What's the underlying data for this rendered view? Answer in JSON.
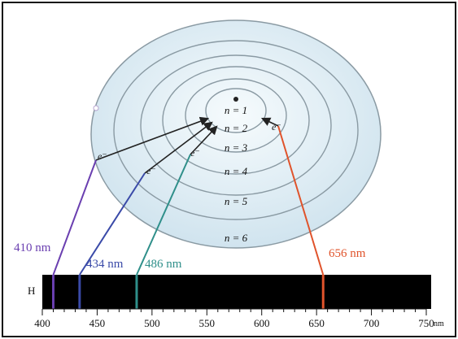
{
  "title": "",
  "colors": {
    "frame": "#111111",
    "orbit_fill_outer": "#d8e9f1",
    "orbit_fill_inner": "#f6fbfd",
    "orbit_stroke": "#8a9aa3",
    "spectrum_bg": "#000000",
    "line_410": "#6a3fb0",
    "line_434": "#3a4aa8",
    "line_486": "#2f8f8a",
    "line_656": "#e0532b",
    "arrow": "#222222"
  },
  "orbits": {
    "levels": [
      {
        "label": "n = 1"
      },
      {
        "label": "n = 2"
      },
      {
        "label": "n = 3"
      },
      {
        "label": "n = 4"
      },
      {
        "label": "n = 5"
      },
      {
        "label": "n = 6"
      }
    ],
    "electron_label": "e⁻"
  },
  "spectrum": {
    "element_label": "H",
    "axis_unit": "nm",
    "axis_ticks": [
      "400",
      "450",
      "500",
      "550",
      "600",
      "650",
      "700",
      "750"
    ],
    "lines": [
      {
        "wavelength_nm": 410,
        "label": "410 nm",
        "color": "#6a3fb0",
        "from_n": 6
      },
      {
        "wavelength_nm": 434,
        "label": "434 nm",
        "color": "#3a4aa8",
        "from_n": 5
      },
      {
        "wavelength_nm": 486,
        "label": "486 nm",
        "color": "#2f8f8a",
        "from_n": 4
      },
      {
        "wavelength_nm": 656,
        "label": "656 nm",
        "color": "#e0532b",
        "from_n": 3
      }
    ]
  }
}
